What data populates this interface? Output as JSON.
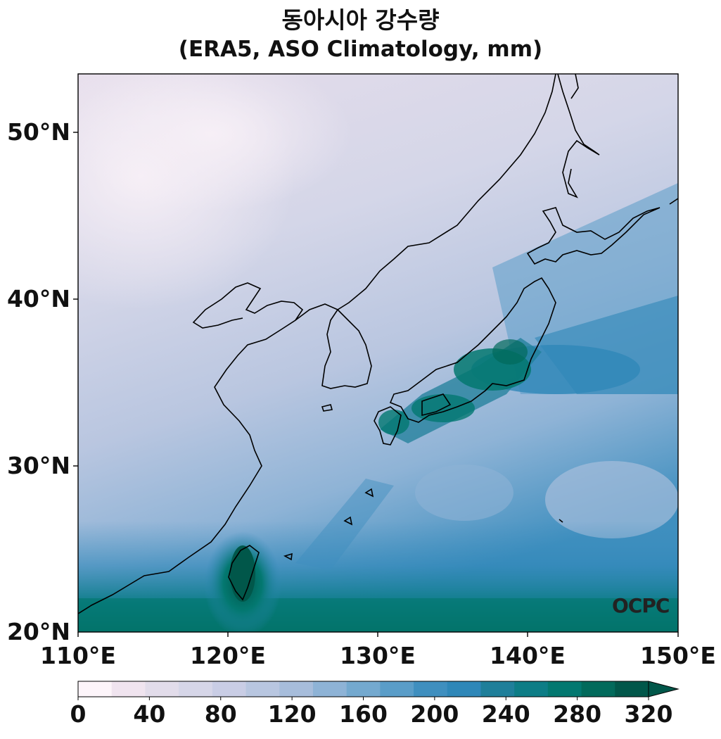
{
  "title": "동아시아 강수량",
  "subtitle": "(ERA5, ASO Climatology, mm)",
  "lon_ticks": [
    "110°E",
    "120°E",
    "130°E",
    "140°E",
    "150°E"
  ],
  "lat_ticks": [
    "50°N",
    "40°N",
    "30°N",
    "20°N"
  ],
  "colorbar": {
    "tick_labels": [
      "0",
      "40",
      "80",
      "120",
      "160",
      "200",
      "240",
      "280",
      "320"
    ],
    "levels": [
      0,
      20,
      40,
      60,
      80,
      100,
      120,
      140,
      160,
      180,
      200,
      220,
      240,
      260,
      280,
      300,
      320
    ],
    "colors": [
      "#fdf5fa",
      "#f0e4ef",
      "#e2dcea",
      "#d6d6e8",
      "#c9cde5",
      "#b8c6e0",
      "#a7bddb",
      "#8eb3d6",
      "#74a9cf",
      "#5a9dc8",
      "#3f8fbf",
      "#2f87b8",
      "#1f7f9a",
      "#0d7d86",
      "#037870",
      "#026a5b",
      "#01574a"
    ],
    "extend": "max"
  },
  "map": {
    "lon_range": [
      110,
      150
    ],
    "lat_range": [
      20,
      53.5
    ],
    "background_colors": {
      "dry_inland": "#e9e0ee",
      "mid": "#c9cde5",
      "ocean_mid": "#74a9cf",
      "wet_south": "#0d7d86",
      "wettest": "#01574a"
    }
  },
  "logo": "OCPC"
}
